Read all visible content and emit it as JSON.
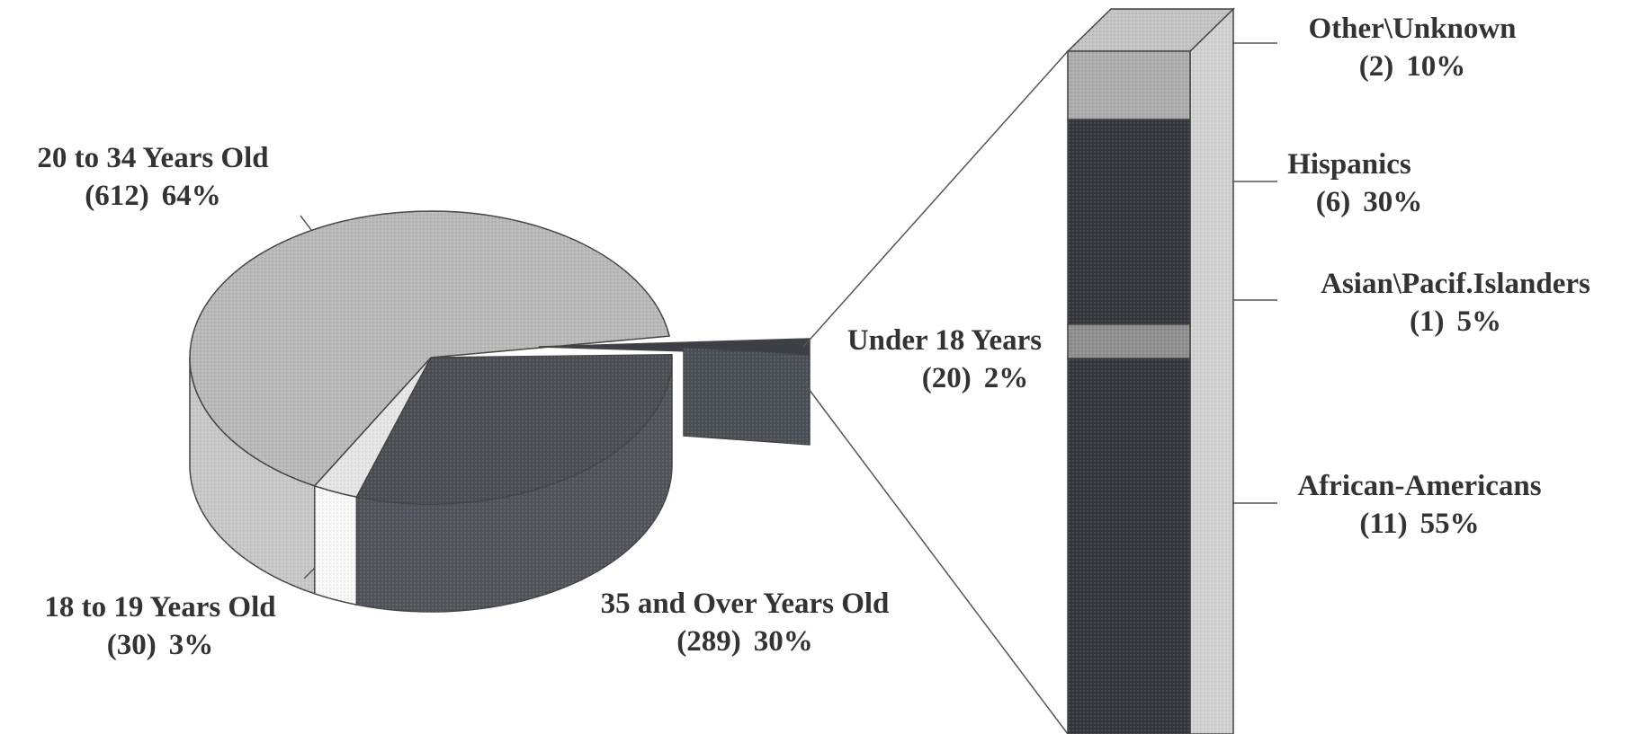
{
  "chart_data": [
    {
      "type": "pie",
      "slices": [
        {
          "name": "20 to 34 Years Old",
          "count": "(612)",
          "pct": "64%",
          "value": 64,
          "color": "#b9b9b9"
        },
        {
          "name": "35 and Over Years Old",
          "count": "(289)",
          "pct": "30%",
          "value": 30,
          "color": "#4b4e54"
        },
        {
          "name": "18 to 19 Years Old",
          "count": "(30)",
          "pct": "3%",
          "value": 3,
          "color": "#e6e6e6"
        },
        {
          "name": "Under 18 Years",
          "count": "(20)",
          "pct": "2%",
          "value": 2,
          "color": "#3c3f45",
          "exploded": true
        }
      ]
    },
    {
      "type": "bar",
      "stacked": true,
      "segments": [
        {
          "name": "Other\\Unknown",
          "count": "(2)",
          "pct": "10%",
          "value": 10,
          "color": "#adadad"
        },
        {
          "name": "Hispanics",
          "count": "(6)",
          "pct": "30%",
          "value": 30,
          "color": "#34373d"
        },
        {
          "name": "Asian\\Pacif.Islanders",
          "count": "(1)",
          "pct": "5%",
          "value": 5,
          "color": "#8f8f8f"
        },
        {
          "name": "African-Americans",
          "count": "(11)",
          "pct": "55%",
          "value": 55,
          "color": "#34373d"
        }
      ]
    }
  ]
}
